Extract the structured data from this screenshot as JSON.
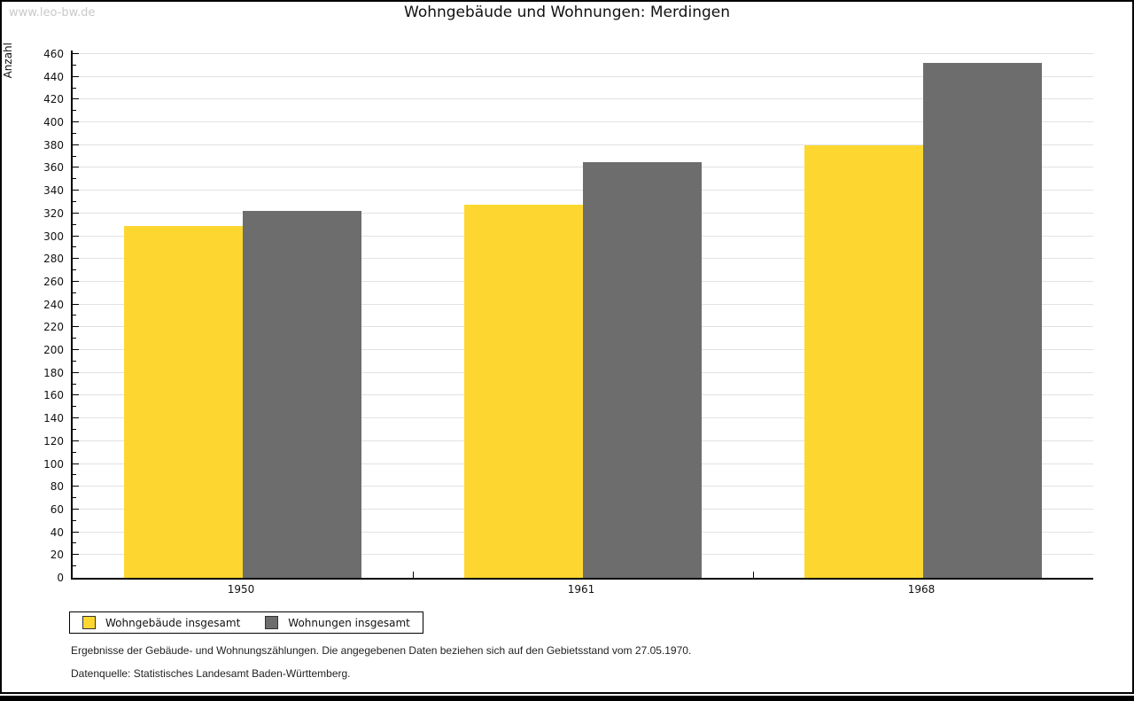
{
  "watermark": "www.leo-bw.de",
  "chart_data": {
    "type": "bar",
    "title": "Wohngebäude und Wohnungen: Merdingen",
    "categories": [
      "1950",
      "1961",
      "1968"
    ],
    "series": [
      {
        "name": "Wohngebäude insgesamt",
        "color": "#FDD72F",
        "values": [
          309,
          328,
          380
        ]
      },
      {
        "name": "Wohnungen insgesamt",
        "color": "#6D6D6D",
        "values": [
          322,
          365,
          452
        ]
      }
    ],
    "xlabel": "",
    "ylabel": "Anzahl",
    "ylim": [
      0,
      460
    ],
    "y_major_step": 20,
    "y_minor_step": 10,
    "grid": true,
    "legend_position": "bottom-left"
  },
  "footnotes": {
    "line1": "Ergebnisse der Gebäude- und Wohnungszählungen. Die angegebenen Daten beziehen sich auf den Gebietsstand vom 27.05.1970.",
    "line2": "Datenquelle: Statistisches Landesamt Baden-Württemberg."
  }
}
